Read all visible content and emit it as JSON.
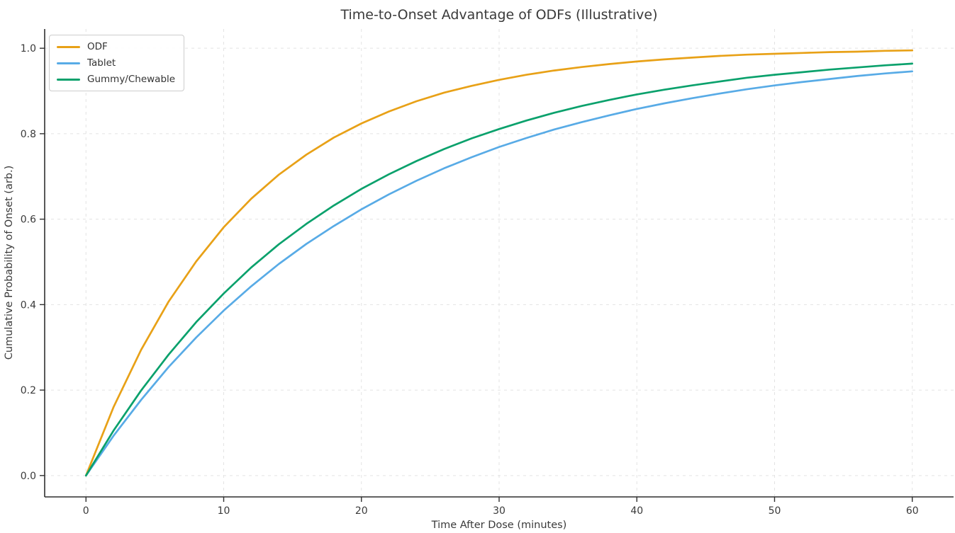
{
  "title": "Time-to-Onset Advantage of ODFs (Illustrative)",
  "colors": {
    "background": "#ffffff",
    "grid": "#e3e3e3",
    "spine": "#2f2f2f",
    "text": "#3a3a3a",
    "odf": "#E8A117",
    "tablet": "#58ABE6",
    "gummy": "#0AA16C"
  },
  "chart_data": {
    "type": "line",
    "title": "Time-to-Onset Advantage of ODFs (Illustrative)",
    "xlabel": "Time After Dose (minutes)",
    "ylabel": "Cumulative Probability of Onset (arb.)",
    "x_ticks": [
      0,
      10,
      20,
      30,
      40,
      50,
      60
    ],
    "y_ticks": [
      0.0,
      0.2,
      0.4,
      0.6,
      0.8,
      1.0
    ],
    "xlim": [
      -3,
      63
    ],
    "ylim": [
      -0.05,
      1.045
    ],
    "grid": true,
    "grid_style": "dashed",
    "legend_position": "upper left",
    "x": [
      0,
      2,
      4,
      6,
      8,
      10,
      12,
      14,
      16,
      18,
      20,
      22,
      24,
      26,
      28,
      30,
      32,
      34,
      36,
      38,
      40,
      42,
      44,
      46,
      48,
      50,
      52,
      54,
      56,
      58,
      60
    ],
    "series": [
      {
        "name": "ODF",
        "color": "#E8A117",
        "values": [
          0.0,
          0.16,
          0.294,
          0.407,
          0.501,
          0.581,
          0.648,
          0.704,
          0.751,
          0.791,
          0.824,
          0.852,
          0.876,
          0.896,
          0.912,
          0.926,
          0.938,
          0.948,
          0.956,
          0.963,
          0.969,
          0.974,
          0.978,
          0.982,
          0.985,
          0.987,
          0.989,
          0.991,
          0.992,
          0.994,
          0.995
        ]
      },
      {
        "name": "Tablet",
        "color": "#58ABE6",
        "values": [
          0.0,
          0.093,
          0.177,
          0.254,
          0.323,
          0.386,
          0.443,
          0.495,
          0.542,
          0.584,
          0.623,
          0.658,
          0.69,
          0.719,
          0.745,
          0.769,
          0.79,
          0.81,
          0.827,
          0.843,
          0.858,
          0.871,
          0.883,
          0.894,
          0.904,
          0.913,
          0.921,
          0.928,
          0.935,
          0.941,
          0.946
        ]
      },
      {
        "name": "Gummy/Chewable",
        "color": "#0AA16C",
        "values": [
          0.0,
          0.105,
          0.199,
          0.283,
          0.359,
          0.426,
          0.487,
          0.541,
          0.589,
          0.632,
          0.671,
          0.705,
          0.736,
          0.764,
          0.789,
          0.811,
          0.831,
          0.849,
          0.865,
          0.879,
          0.892,
          0.903,
          0.913,
          0.922,
          0.931,
          0.938,
          0.944,
          0.95,
          0.955,
          0.96,
          0.964
        ]
      }
    ]
  }
}
